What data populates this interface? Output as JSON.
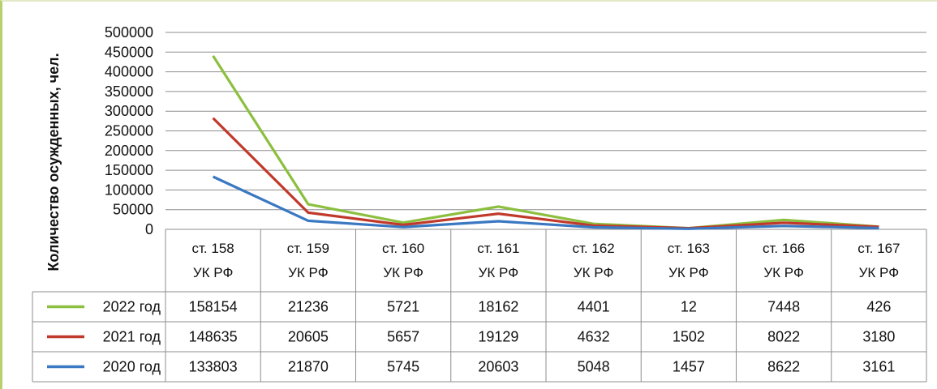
{
  "chart_data": {
    "type": "line",
    "ylabel": "Количество осужденных, чел.",
    "xlabel": "",
    "title": "",
    "ylim": [
      0,
      500000
    ],
    "yticks": [
      0,
      50000,
      100000,
      150000,
      200000,
      250000,
      300000,
      350000,
      400000,
      450000,
      500000
    ],
    "categories": [
      [
        "ст. 158",
        "УК РФ"
      ],
      [
        "ст. 159",
        "УК РФ"
      ],
      [
        "ст. 160",
        "УК РФ"
      ],
      [
        "ст. 161",
        "УК РФ"
      ],
      [
        "ст. 162",
        "УК РФ"
      ],
      [
        "ст. 163",
        "УК РФ"
      ],
      [
        "ст. 166",
        "УК РФ"
      ],
      [
        "ст. 167",
        "УК РФ"
      ]
    ],
    "series": [
      {
        "name": "2022 год",
        "color": "#8cbf3f",
        "values": [
          158154,
          21236,
          5721,
          18162,
          4401,
          12,
          7448,
          426
        ]
      },
      {
        "name": "2021 год",
        "color": "#c0392b",
        "values": [
          148635,
          20605,
          5657,
          19129,
          4632,
          1502,
          8022,
          3180
        ]
      },
      {
        "name": "2020 год",
        "color": "#3a78c2",
        "values": [
          133803,
          21870,
          5745,
          20603,
          5048,
          1457,
          8622,
          3161
        ]
      }
    ],
    "stacked": true,
    "grid": true,
    "legend": "data table"
  }
}
